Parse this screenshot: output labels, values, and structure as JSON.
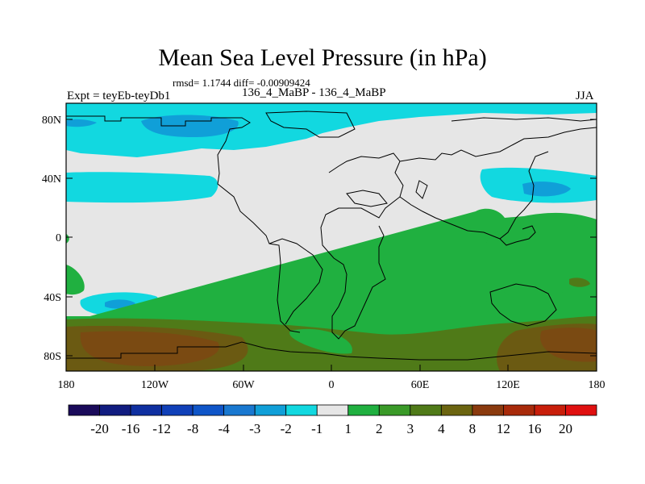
{
  "header": {
    "title": "Mean Sea Level Pressure (in hPa)",
    "stats": "rmsd= 1.1744 diff= -0.00909424",
    "expt_label": "Expt = teyEb-teyDb1",
    "experiments": "136_4_MaBP - 136_4_MaBP",
    "season": "JJA"
  },
  "axes": {
    "lat_ticks": [
      "80N",
      "40N",
      "0",
      "40S",
      "80S"
    ],
    "lon_ticks": [
      "180",
      "120W",
      "60W",
      "0",
      "60E",
      "120E",
      "180"
    ]
  },
  "colorbar": {
    "labels": [
      "-20",
      "-16",
      "-12",
      "-8",
      "-4",
      "-3",
      "-2",
      "-1",
      "1",
      "2",
      "3",
      "4",
      "8",
      "12",
      "16",
      "20"
    ],
    "colors": [
      "#1a0a5a",
      "#111c80",
      "#0f2fa0",
      "#1040b8",
      "#0f55c8",
      "#1978d0",
      "#109fd8",
      "#12d8e0",
      "#e6e6e6",
      "#20b040",
      "#3a9a28",
      "#4f7a18",
      "#6b6410",
      "#8a3a0e",
      "#a82a0a",
      "#c81e0a",
      "#e01010"
    ]
  },
  "colors": {
    "background_field": "#e6e6e6",
    "neg_light": "#12d8e0",
    "neg_mid": "#109fd8",
    "pos_green": "#20b040",
    "pos_darkgreen": "#4f7a18",
    "pos_olive": "#6b5a12",
    "pos_brown": "#7a4a12"
  }
}
